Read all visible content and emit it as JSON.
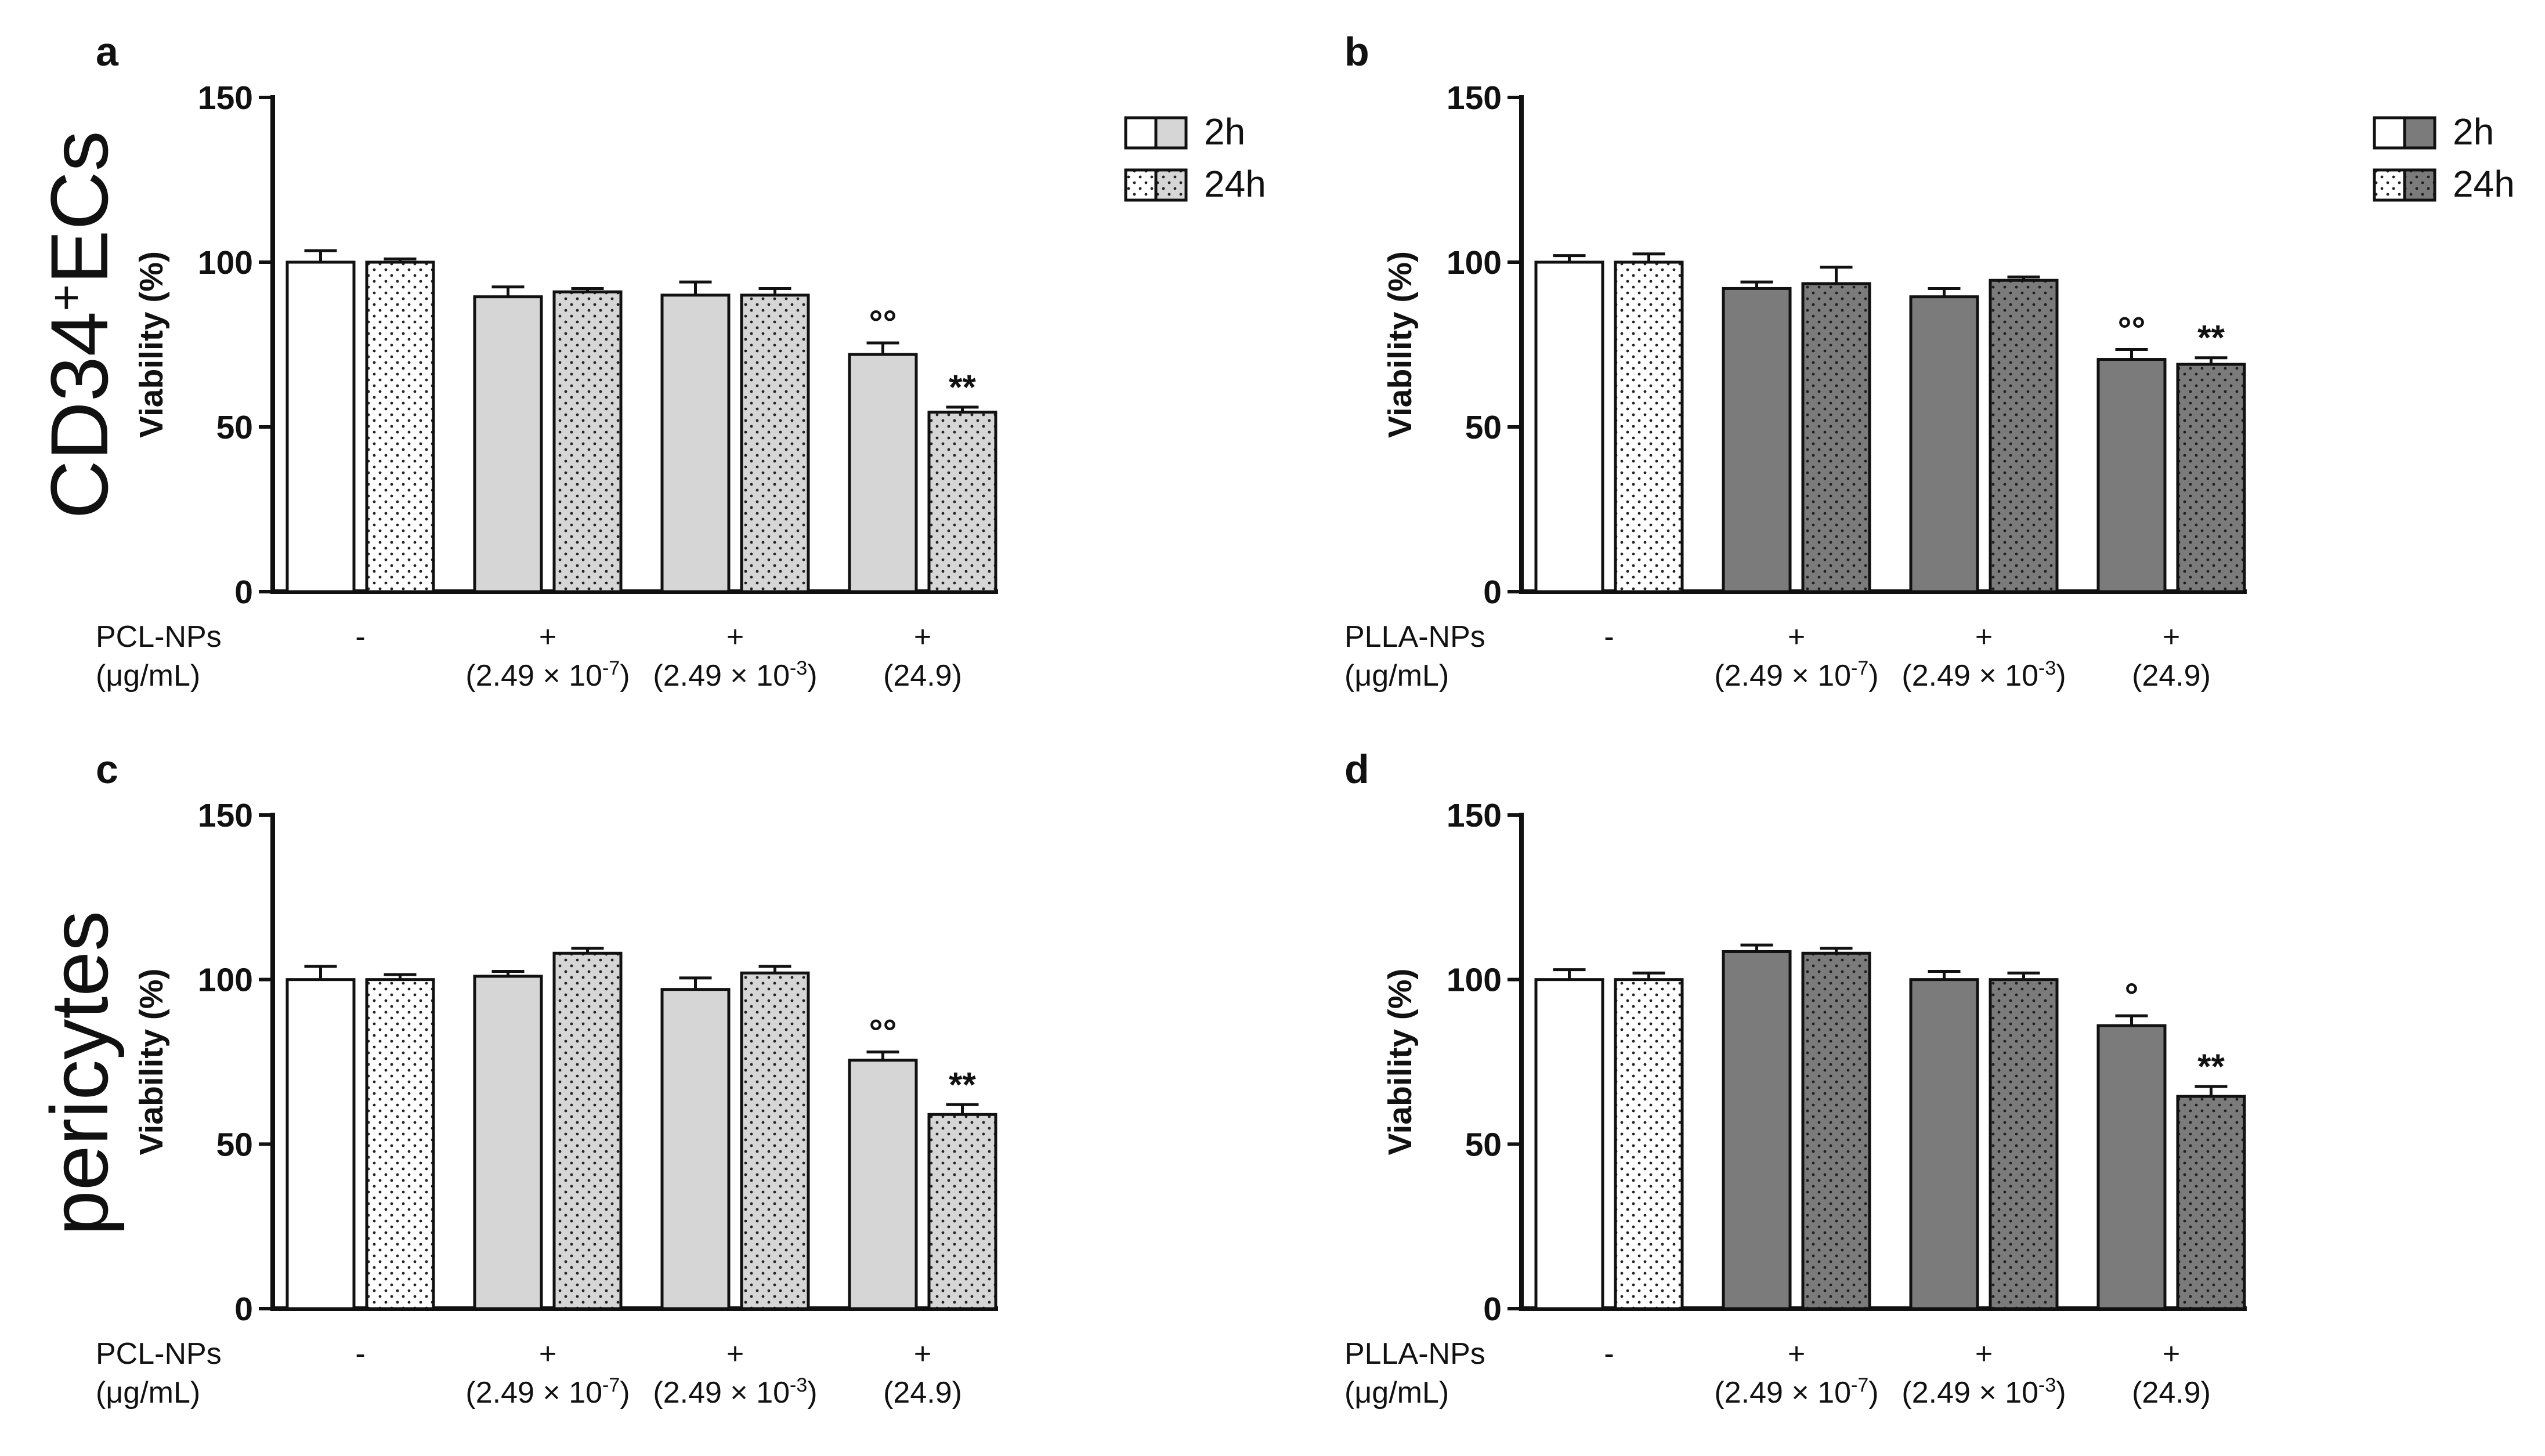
{
  "row_labels": [
    "CD34",
    "+",
    "ECs",
    "pericytes"
  ],
  "chart_data": [
    {
      "type": "bar",
      "panel": "a",
      "ylabel": "Viability (%)",
      "ylim": [
        0,
        150
      ],
      "yticks": [
        "0",
        "50",
        "100",
        "150"
      ],
      "condition_label": [
        "PCL-NPs",
        "(μg/mL)"
      ],
      "groups": [
        {
          "sign": "-",
          "conc": ""
        },
        {
          "sign": "+",
          "conc": "(2.49 × 10",
          "exp": "-7",
          "close": ")"
        },
        {
          "sign": "+",
          "conc": "(2.49 × 10",
          "exp": "-3",
          "close": ")"
        },
        {
          "sign": "+",
          "conc": "(24.9)"
        }
      ],
      "series": [
        {
          "name": "2h",
          "values": [
            100,
            89.5,
            90,
            72
          ],
          "errors": [
            3.5,
            3,
            4,
            3.5
          ],
          "sig": [
            "",
            "",
            "",
            "°°"
          ]
        },
        {
          "name": "24h",
          "values": [
            100,
            91,
            90,
            54.5
          ],
          "errors": [
            1,
            1,
            2,
            1.5
          ],
          "sig": [
            "",
            "",
            "",
            "**"
          ]
        }
      ],
      "legend": [
        "2h",
        "24h"
      ]
    },
    {
      "type": "bar",
      "panel": "b",
      "ylabel": "Viability (%)",
      "ylim": [
        0,
        150
      ],
      "yticks": [
        "0",
        "50",
        "100",
        "150"
      ],
      "condition_label": [
        "PLLA-NPs",
        "(μg/mL)"
      ],
      "groups": [
        {
          "sign": "-",
          "conc": ""
        },
        {
          "sign": "+",
          "conc": "(2.49 × 10",
          "exp": "-7",
          "close": ")"
        },
        {
          "sign": "+",
          "conc": "(2.49 × 10",
          "exp": "-3",
          "close": ")"
        },
        {
          "sign": "+",
          "conc": "(24.9)"
        }
      ],
      "series": [
        {
          "name": "2h",
          "values": [
            100,
            92,
            89.5,
            70.5
          ],
          "errors": [
            2,
            2,
            2.5,
            3
          ],
          "sig": [
            "",
            "",
            "",
            "°°"
          ]
        },
        {
          "name": "24h",
          "values": [
            100,
            93.5,
            94.5,
            69
          ],
          "errors": [
            2.5,
            5,
            1,
            2
          ],
          "sig": [
            "",
            "",
            "",
            "**"
          ]
        }
      ],
      "legend": [
        "2h",
        "24h"
      ]
    },
    {
      "type": "bar",
      "panel": "c",
      "ylabel": "Viability (%)",
      "ylim": [
        0,
        150
      ],
      "yticks": [
        "0",
        "50",
        "100",
        "150"
      ],
      "condition_label": [
        "PCL-NPs",
        "(μg/mL)"
      ],
      "groups": [
        {
          "sign": "-",
          "conc": ""
        },
        {
          "sign": "+",
          "conc": "(2.49 × 10",
          "exp": "-7",
          "close": ")"
        },
        {
          "sign": "+",
          "conc": "(2.49 × 10",
          "exp": "-3",
          "close": ")"
        },
        {
          "sign": "+",
          "conc": "(24.9)"
        }
      ],
      "series": [
        {
          "name": "2h",
          "values": [
            100,
            101,
            97,
            75.5
          ],
          "errors": [
            4,
            1.5,
            3.5,
            2.5
          ],
          "sig": [
            "",
            "",
            "",
            "°°"
          ]
        },
        {
          "name": "24h",
          "values": [
            100,
            108,
            102,
            59
          ],
          "errors": [
            1.5,
            1.5,
            2,
            3
          ],
          "sig": [
            "",
            "",
            "",
            "**"
          ]
        }
      ],
      "legend": []
    },
    {
      "type": "bar",
      "panel": "d",
      "ylabel": "Viability (%)",
      "ylim": [
        0,
        150
      ],
      "yticks": [
        "0",
        "50",
        "100",
        "150"
      ],
      "condition_label": [
        "PLLA-NPs",
        "(μg/mL)"
      ],
      "groups": [
        {
          "sign": "-",
          "conc": ""
        },
        {
          "sign": "+",
          "conc": "(2.49 × 10",
          "exp": "-7",
          "close": ")"
        },
        {
          "sign": "+",
          "conc": "(2.49 × 10",
          "exp": "-3",
          "close": ")"
        },
        {
          "sign": "+",
          "conc": "(24.9)"
        }
      ],
      "series": [
        {
          "name": "2h",
          "values": [
            100,
            108.5,
            100,
            86
          ],
          "errors": [
            3,
            2,
            2.5,
            3
          ],
          "sig": [
            "",
            "",
            "",
            "°"
          ]
        },
        {
          "name": "24h",
          "values": [
            100,
            108,
            100,
            64.5
          ],
          "errors": [
            2,
            1.5,
            2,
            3
          ],
          "sig": [
            "",
            "",
            "",
            "**"
          ]
        }
      ],
      "legend": []
    }
  ],
  "colors": {
    "axis": "#111111",
    "white": "#ffffff",
    "pcl_fill": "#d6d6d6",
    "plla_fill": "#7b7b7b",
    "dots_light": "#222222",
    "dots_dark": "#1e1e1e"
  }
}
